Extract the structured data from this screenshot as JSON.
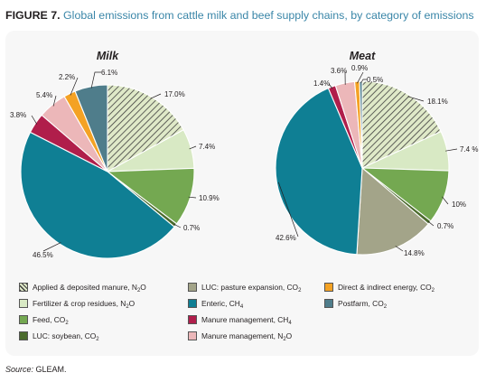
{
  "figure": {
    "label": "FIGURE 7.",
    "title": "Global emissions from cattle milk and beef supply chains, by category of emissions",
    "source_label": "Source:",
    "source_value": "GLEAM."
  },
  "legend": [
    {
      "key": "applied",
      "name": "Applied & deposited manure, N",
      "sub": "2",
      "tail": "O",
      "color": "#d4e4b4",
      "pattern": "hatch"
    },
    {
      "key": "fertilizer",
      "name": "Fertilizer & crop residues, N",
      "sub": "2",
      "tail": "O",
      "color": "#d8e9c4"
    },
    {
      "key": "feed",
      "name": "Feed, CO",
      "sub": "2",
      "tail": "",
      "color": "#74a851"
    },
    {
      "key": "soy",
      "name": "LUC: soybean, CO",
      "sub": "2",
      "tail": "",
      "color": "#4b6b2c"
    },
    {
      "key": "pasture",
      "name": "LUC: pasture expansion, CO",
      "sub": "2",
      "tail": "",
      "color": "#a3a489"
    },
    {
      "key": "enteric",
      "name": "Enteric, CH",
      "sub": "4",
      "tail": "",
      "color": "#0f7f94"
    },
    {
      "key": "manure_ch4",
      "name": "Manure management, CH",
      "sub": "4",
      "tail": "",
      "color": "#b01e4b"
    },
    {
      "key": "manure_n2o",
      "name": "Manure management, N",
      "sub": "2",
      "tail": "O",
      "color": "#ecb7b9"
    },
    {
      "key": "energy",
      "name": "Direct & indirect energy, CO",
      "sub": "2",
      "tail": "",
      "color": "#f4a224"
    },
    {
      "key": "postfarm",
      "name": "Postfarm, CO",
      "sub": "2",
      "tail": "",
      "color": "#4f7d8b"
    }
  ],
  "chart_data": [
    {
      "type": "pie",
      "title": "Milk",
      "slices": [
        {
          "key": "applied",
          "value": 17.0,
          "label": "17.0%"
        },
        {
          "key": "fertilizer",
          "value": 7.4,
          "label": "7.4%"
        },
        {
          "key": "feed",
          "value": 10.9,
          "label": "10.9%"
        },
        {
          "key": "soy",
          "value": 0.7,
          "label": "0.7%"
        },
        {
          "key": "pasture",
          "value": 0.0,
          "label": ""
        },
        {
          "key": "enteric",
          "value": 46.5,
          "label": "46.5%"
        },
        {
          "key": "manure_ch4",
          "value": 3.8,
          "label": "3.8%"
        },
        {
          "key": "manure_n2o",
          "value": 5.4,
          "label": "5.4%"
        },
        {
          "key": "energy",
          "value": 2.2,
          "label": "2.2%"
        },
        {
          "key": "postfarm",
          "value": 6.1,
          "label": "6.1%"
        }
      ]
    },
    {
      "type": "pie",
      "title": "Meat",
      "slices": [
        {
          "key": "applied",
          "value": 18.1,
          "label": "18.1%"
        },
        {
          "key": "fertilizer",
          "value": 7.4,
          "label": "7.4 %"
        },
        {
          "key": "feed",
          "value": 10.0,
          "label": "10%"
        },
        {
          "key": "soy",
          "value": 0.7,
          "label": "0.7%"
        },
        {
          "key": "pasture",
          "value": 14.8,
          "label": "14.8%"
        },
        {
          "key": "enteric",
          "value": 42.6,
          "label": "42.6%"
        },
        {
          "key": "manure_ch4",
          "value": 1.4,
          "label": "1.4%"
        },
        {
          "key": "manure_n2o",
          "value": 3.6,
          "label": "3.6%"
        },
        {
          "key": "energy",
          "value": 0.9,
          "label": "0.9%"
        },
        {
          "key": "postfarm",
          "value": 0.5,
          "label": "0.5%"
        }
      ]
    }
  ]
}
